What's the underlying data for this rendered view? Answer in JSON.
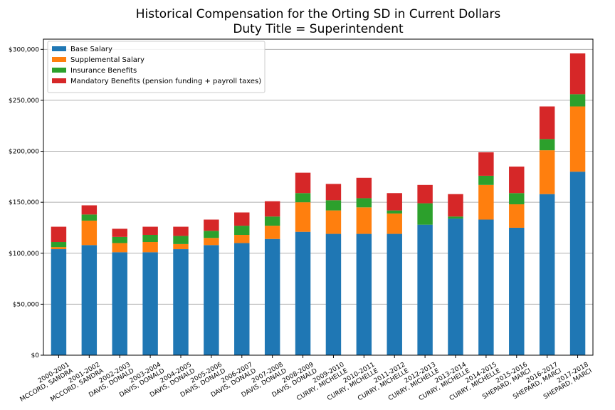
{
  "chart_data": {
    "type": "bar",
    "stacked": true,
    "title": "Historical Compensation for the Orting SD in Current Dollars",
    "subtitle": "Duty Title = Superintendent",
    "xlabel": "",
    "ylabel": "",
    "ylim": [
      0,
      310000
    ],
    "yticks": [
      0,
      50000,
      100000,
      150000,
      200000,
      250000,
      300000
    ],
    "ytick_labels": [
      "$0",
      "$50,000",
      "$100,000",
      "$150,000",
      "$200,000",
      "$250,000",
      "$300,000"
    ],
    "grid": "horizontal",
    "legend_position": "top-left",
    "categories": [
      [
        "2000-2001",
        "MCCORD, SANDRA"
      ],
      [
        "2001-2002",
        "MCCORD, SANDRA"
      ],
      [
        "2002-2003",
        "DAVIS, DONALD"
      ],
      [
        "2003-2004",
        "DAVIS, DONALD"
      ],
      [
        "2004-2005",
        "DAVIS, DONALD"
      ],
      [
        "2005-2006",
        "DAVIS, DONALD"
      ],
      [
        "2006-2007",
        "DAVIS, DONALD"
      ],
      [
        "2007-2008",
        "DAVIS, DONALD"
      ],
      [
        "2008-2009",
        "DAVIS, DONALD"
      ],
      [
        "2009-2010",
        "CURRY, MICHELLE"
      ],
      [
        "2010-2011",
        "CURRY, MICHELLE"
      ],
      [
        "2011-2012",
        "CURRY, MICHELLE"
      ],
      [
        "2012-2013",
        "CURRY, MICHELLE"
      ],
      [
        "2013-2014",
        "CURRY, MICHELLE"
      ],
      [
        "2014-2015",
        "CURRY, MICHELLE"
      ],
      [
        "2015-2016",
        "SHEPARD, MARCI"
      ],
      [
        "2016-2017",
        "SHEPARD, MARCI"
      ],
      [
        "2017-2018",
        "SHEPARD, MARCI"
      ]
    ],
    "series": [
      {
        "name": "Base Salary",
        "color": "#1f77b4",
        "values": [
          104000,
          108000,
          101000,
          101000,
          104000,
          108000,
          110000,
          114000,
          121000,
          119000,
          119000,
          119000,
          128000,
          134000,
          133000,
          125000,
          158000,
          180000
        ]
      },
      {
        "name": "Supplemental Salary",
        "color": "#ff7f0e",
        "values": [
          2000,
          24000,
          9000,
          10000,
          5000,
          7000,
          8000,
          13000,
          29000,
          23000,
          26000,
          20000,
          0,
          0,
          34000,
          23000,
          43000,
          64000
        ]
      },
      {
        "name": "Insurance Benefits",
        "color": "#2ca02c",
        "values": [
          5000,
          6000,
          6000,
          7000,
          8000,
          7000,
          9000,
          9000,
          9000,
          10000,
          9000,
          3000,
          21000,
          2000,
          9000,
          11000,
          11000,
          12000
        ]
      },
      {
        "name": "Mandatory Benefits (pension funding + payroll taxes)",
        "color": "#d62728",
        "values": [
          15000,
          9000,
          8000,
          8000,
          9000,
          11000,
          13000,
          15000,
          20000,
          16000,
          20000,
          17000,
          18000,
          22000,
          23000,
          26000,
          32000,
          40000
        ]
      }
    ]
  }
}
